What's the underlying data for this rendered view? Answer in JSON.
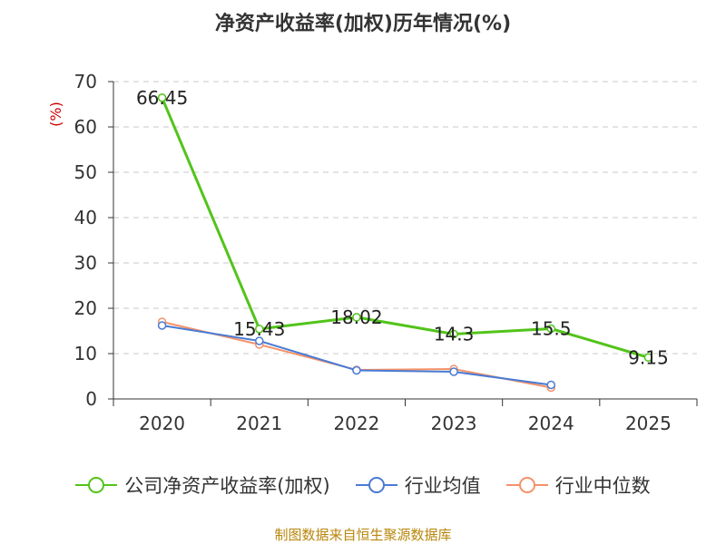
{
  "chart_data": {
    "type": "line",
    "title": "净资产收益率(加权)历年情况(%)",
    "ylabel": "(%)",
    "xlabel": "",
    "ylim": [
      0,
      70
    ],
    "yticks": [
      0,
      10,
      20,
      30,
      40,
      50,
      60,
      70
    ],
    "categories": [
      "2020",
      "2021",
      "2022",
      "2023",
      "2024",
      "2025"
    ],
    "grid": true,
    "legend_position": "bottom",
    "series": [
      {
        "name": "公司净资产收益率(加权)",
        "color": "#52c41a",
        "values": [
          66.45,
          15.43,
          18.02,
          14.3,
          15.5,
          9.15
        ],
        "labels": [
          "66.45",
          "15.43",
          "18.02",
          "14.3",
          "15.5",
          "9.15"
        ]
      },
      {
        "name": "行业均值",
        "color": "#4a7bd4",
        "values": [
          16.2,
          12.8,
          6.3,
          6.0,
          3.1,
          null
        ]
      },
      {
        "name": "行业中位数",
        "color": "#f4926a",
        "values": [
          17.0,
          12.0,
          6.4,
          6.6,
          2.5,
          null
        ]
      }
    ]
  },
  "source": "制图数据来自恒生聚源数据库"
}
